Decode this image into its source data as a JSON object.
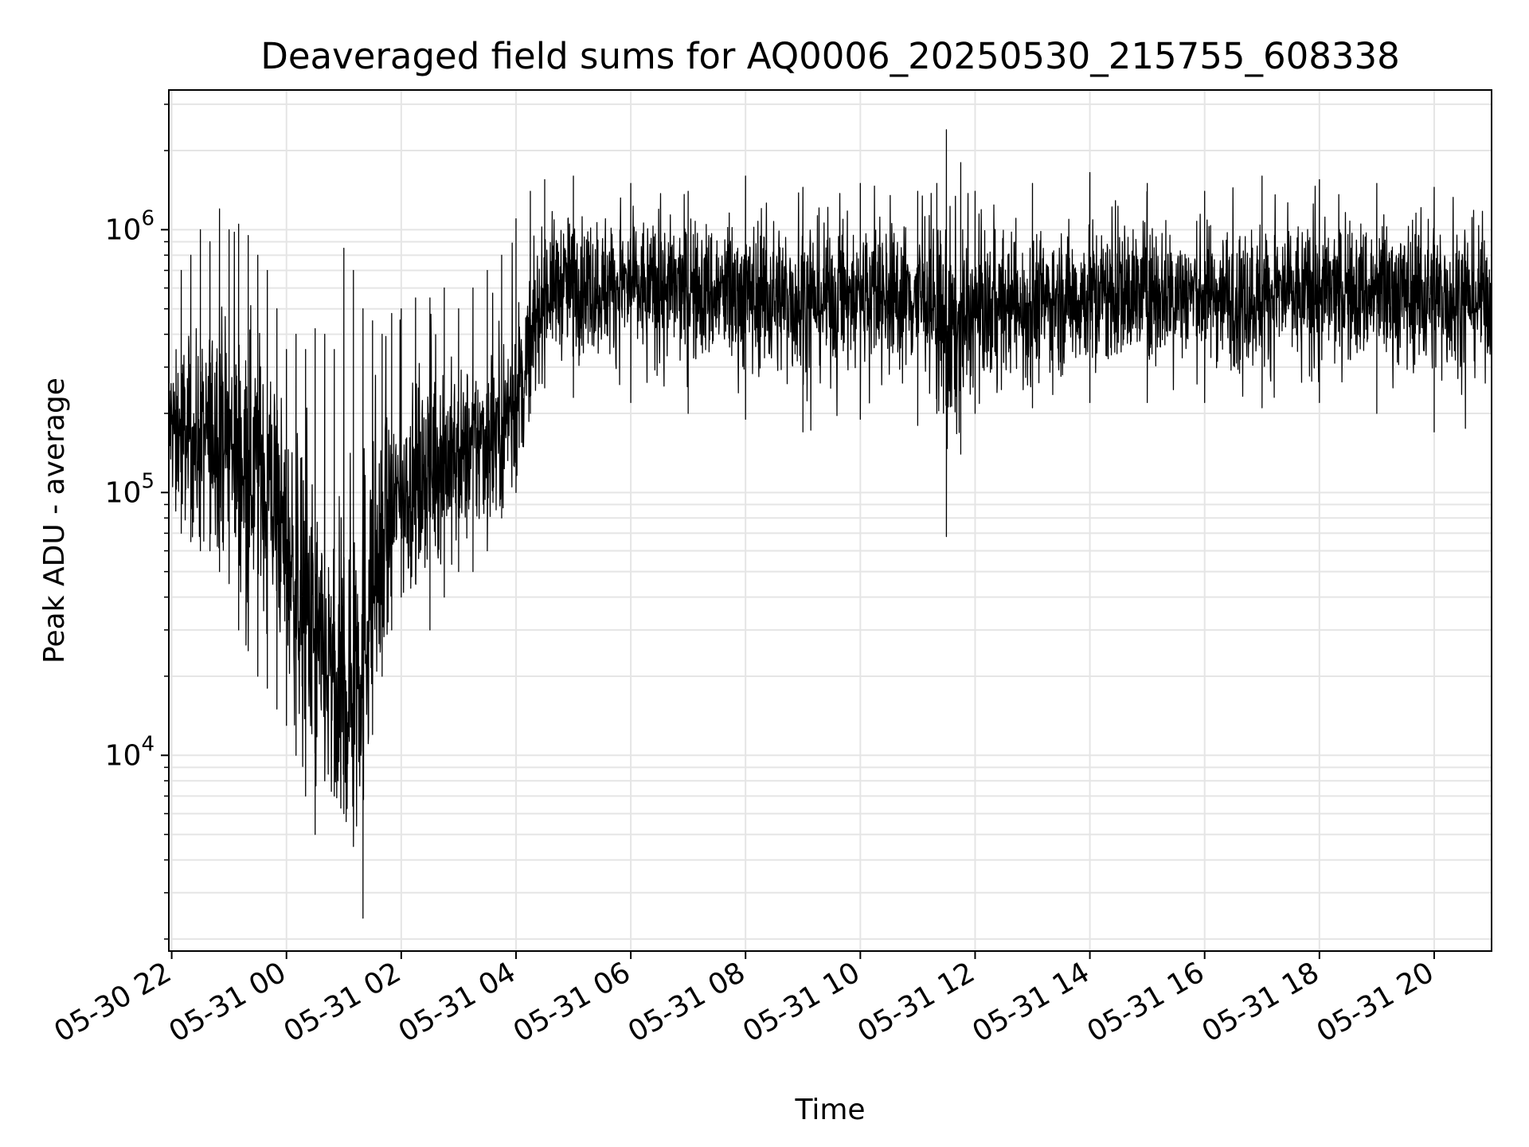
{
  "chart_data": {
    "type": "line",
    "title": "Deaveraged field sums for AQ0006_20250530_215755_608338",
    "xlabel": "Time",
    "ylabel": "Peak ADU - average",
    "yscale": "log",
    "grid": true,
    "line_color": "#000000",
    "grid_color": "#e5e5e5",
    "xlim": [
      "2025-05-30 21:57",
      "2025-05-31 21:00"
    ],
    "ylim": [
      1800,
      3400000
    ],
    "x_ticks": [
      "05-30 22",
      "05-31 00",
      "05-31 02",
      "05-31 04",
      "05-31 06",
      "05-31 08",
      "05-31 10",
      "05-31 12",
      "05-31 14",
      "05-31 16",
      "05-31 18",
      "05-31 20"
    ],
    "y_ticks": [
      {
        "base": "10",
        "exp": "4",
        "value": 10000
      },
      {
        "base": "10",
        "exp": "5",
        "value": 100000
      },
      {
        "base": "10",
        "exp": "6",
        "value": 1000000
      }
    ],
    "series": [
      {
        "x": [
          "2025-05-30 21:57",
          "2025-05-30 22:10",
          "2025-05-30 22:20",
          "2025-05-30 22:30",
          "2025-05-30 22:40",
          "2025-05-30 22:50",
          "2025-05-30 23:00",
          "2025-05-30 23:10",
          "2025-05-30 23:20",
          "2025-05-30 23:30",
          "2025-05-30 23:40",
          "2025-05-30 23:50",
          "2025-05-31 00:00",
          "2025-05-31 00:10",
          "2025-05-31 00:20",
          "2025-05-31 00:30",
          "2025-05-31 00:40",
          "2025-05-31 00:50",
          "2025-05-31 01:00",
          "2025-05-31 01:10",
          "2025-05-31 01:20",
          "2025-05-31 01:30",
          "2025-05-31 01:40",
          "2025-05-31 01:50",
          "2025-05-31 02:00",
          "2025-05-31 02:15",
          "2025-05-31 02:30",
          "2025-05-31 02:45",
          "2025-05-31 03:00",
          "2025-05-31 03:15",
          "2025-05-31 03:30",
          "2025-05-31 03:45",
          "2025-05-31 04:00",
          "2025-05-31 04:15",
          "2025-05-31 04:30",
          "2025-05-31 05:00",
          "2025-05-31 06:00",
          "2025-05-31 07:00",
          "2025-05-31 08:00",
          "2025-05-31 09:00",
          "2025-05-31 10:00",
          "2025-05-31 11:00",
          "2025-05-31 11:20",
          "2025-05-31 11:30",
          "2025-05-31 11:45",
          "2025-05-31 12:00",
          "2025-05-31 13:00",
          "2025-05-31 14:00",
          "2025-05-31 15:00",
          "2025-05-31 16:00",
          "2025-05-31 17:00",
          "2025-05-31 18:00",
          "2025-05-31 19:00",
          "2025-05-31 20:00",
          "2025-05-31 21:00"
        ],
        "y_median": [
          180000,
          170000,
          160000,
          150000,
          170000,
          190000,
          160000,
          140000,
          130000,
          125000,
          110000,
          90000,
          60000,
          45000,
          35000,
          25000,
          20000,
          18000,
          17000,
          22000,
          30000,
          45000,
          60000,
          80000,
          100000,
          110000,
          130000,
          140000,
          130000,
          150000,
          160000,
          180000,
          230000,
          350000,
          600000,
          620000,
          600000,
          580000,
          560000,
          540000,
          560000,
          550000,
          500000,
          380000,
          420000,
          500000,
          520000,
          560000,
          580000,
          570000,
          560000,
          570000,
          580000,
          560000,
          550000
        ],
        "y_low": [
          70000,
          70000,
          65000,
          60000,
          60000,
          50000,
          45000,
          30000,
          25000,
          20000,
          18000,
          15000,
          13000,
          10000,
          7000,
          5000,
          8000,
          7000,
          6000,
          4500,
          2400,
          12000,
          20000,
          30000,
          40000,
          45000,
          30000,
          40000,
          50000,
          50000,
          60000,
          80000,
          100000,
          200000,
          250000,
          230000,
          220000,
          200000,
          190000,
          170000,
          190000,
          180000,
          200000,
          68000,
          140000,
          200000,
          210000,
          220000,
          220000,
          220000,
          210000,
          220000,
          200000,
          170000,
          180000
        ],
        "y_high": [
          500000,
          700000,
          800000,
          1000000,
          900000,
          1200000,
          1000000,
          1050000,
          950000,
          800000,
          700000,
          500000,
          350000,
          400000,
          350000,
          420000,
          400000,
          350000,
          850000,
          700000,
          500000,
          450000,
          400000,
          480000,
          500000,
          550000,
          550000,
          600000,
          500000,
          600000,
          700000,
          800000,
          1100000,
          1400000,
          1550000,
          1600000,
          1500000,
          1400000,
          1600000,
          1450000,
          1500000,
          1400000,
          1500000,
          2400000,
          1800000,
          1400000,
          1500000,
          1650000,
          1500000,
          1400000,
          1600000,
          1550000,
          1500000,
          1450000,
          1300000
        ]
      }
    ]
  }
}
